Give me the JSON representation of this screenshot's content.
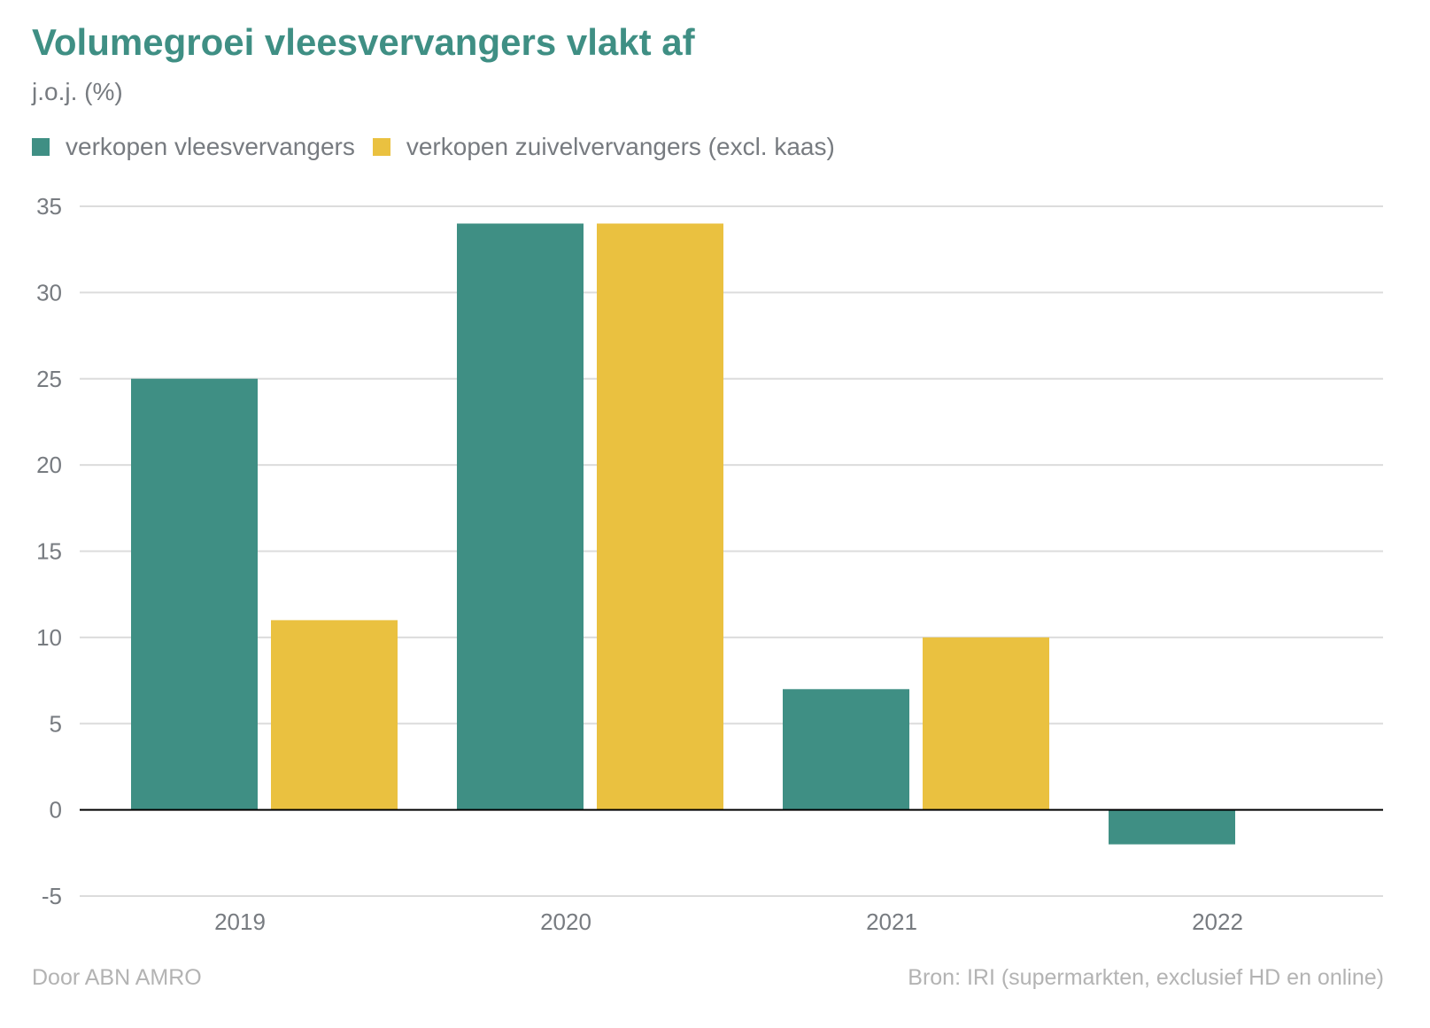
{
  "chart_data": {
    "type": "bar",
    "title": "Volumegroei vleesvervangers vlakt af",
    "subtitle": "j.o.j. (%)",
    "categories": [
      "2019",
      "2020",
      "2021",
      "2022"
    ],
    "series": [
      {
        "name": "verkopen vleesvervangers",
        "color": "#3f8f84",
        "values": [
          25,
          34,
          7,
          -2
        ]
      },
      {
        "name": "verkopen zuivelvervangers (excl. kaas)",
        "color": "#eac140",
        "values": [
          11,
          34,
          10,
          null
        ]
      }
    ],
    "ylim": [
      -5,
      35
    ],
    "yticks": [
      "35",
      "30",
      "25",
      "20",
      "15",
      "10",
      "5",
      "0",
      "-5"
    ],
    "grid": true,
    "legend": "top-left"
  },
  "footer": {
    "credit": "Door ABN AMRO",
    "source": "Bron: IRI (supermarkten, exclusief HD en online)"
  }
}
